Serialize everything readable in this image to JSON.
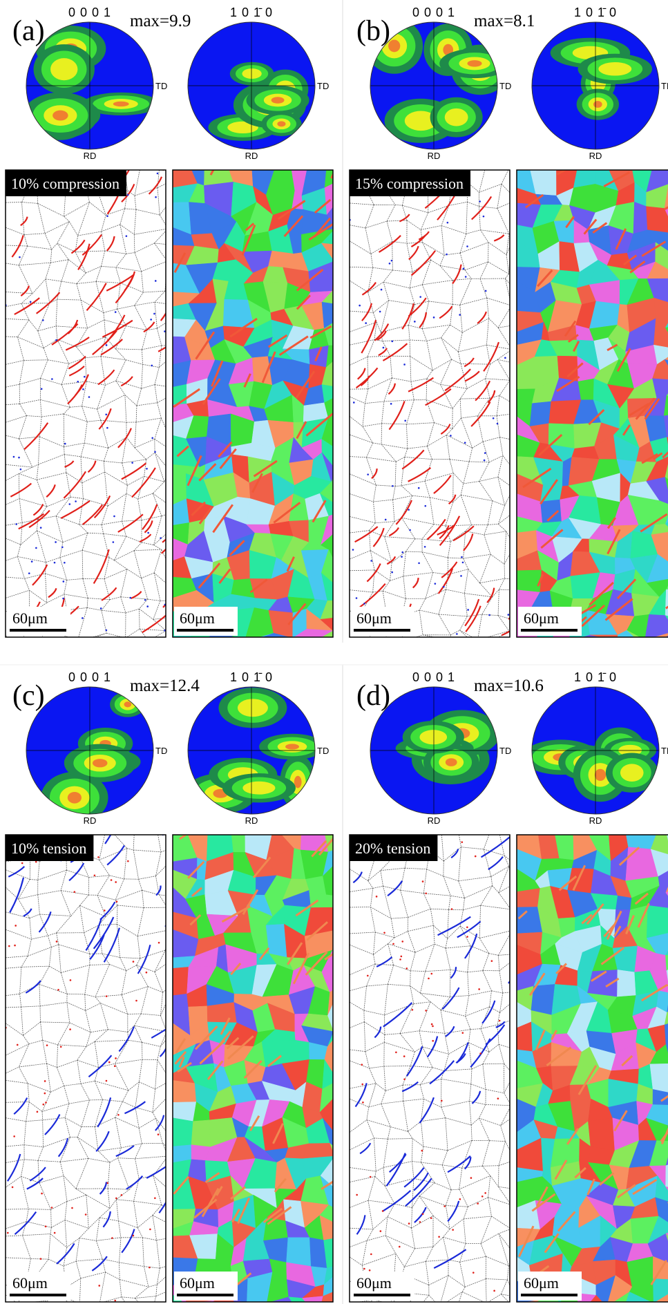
{
  "panels": [
    {
      "label": "(a)",
      "max_text": "max=9.9",
      "pole_figures": [
        {
          "title": "0 0 0 1",
          "side_label": "TD",
          "bottom_label": "RD"
        },
        {
          "title": "1 0 1̄ 0",
          "side_label": "TD",
          "bottom_label": "RD"
        }
      ],
      "caption": "10% compression",
      "scale_bar_labels": [
        "60μm",
        "60μm"
      ]
    },
    {
      "label": "(b)",
      "max_text": "max=8.1",
      "pole_figures": [
        {
          "title": "0 0 0 1",
          "side_label": "TD",
          "bottom_label": "RD"
        },
        {
          "title": "1 0 1̄ 0",
          "side_label": "TD",
          "bottom_label": "RD"
        }
      ],
      "caption": "15% compression",
      "scale_bar_labels": [
        "60μm",
        "60μm"
      ]
    },
    {
      "label": "(c)",
      "max_text": "max=12.4",
      "pole_figures": [
        {
          "title": "0 0 0 1",
          "side_label": "TD",
          "bottom_label": "RD"
        },
        {
          "title": "1 0 1̄ 0",
          "side_label": "TD",
          "bottom_label": "RD"
        }
      ],
      "caption": "10%  tension",
      "scale_bar_labels": [
        "60μm",
        "60μm"
      ]
    },
    {
      "label": "(d)",
      "max_text": "max=10.6",
      "pole_figures": [
        {
          "title": "0 0 0 1",
          "side_label": "TD",
          "bottom_label": "RD"
        },
        {
          "title": "1 0 1̄ 0",
          "side_label": "TD",
          "bottom_label": "RD"
        }
      ],
      "caption": "20%  tension",
      "scale_bar_labels": [
        "60μm",
        "60μm"
      ]
    }
  ]
}
